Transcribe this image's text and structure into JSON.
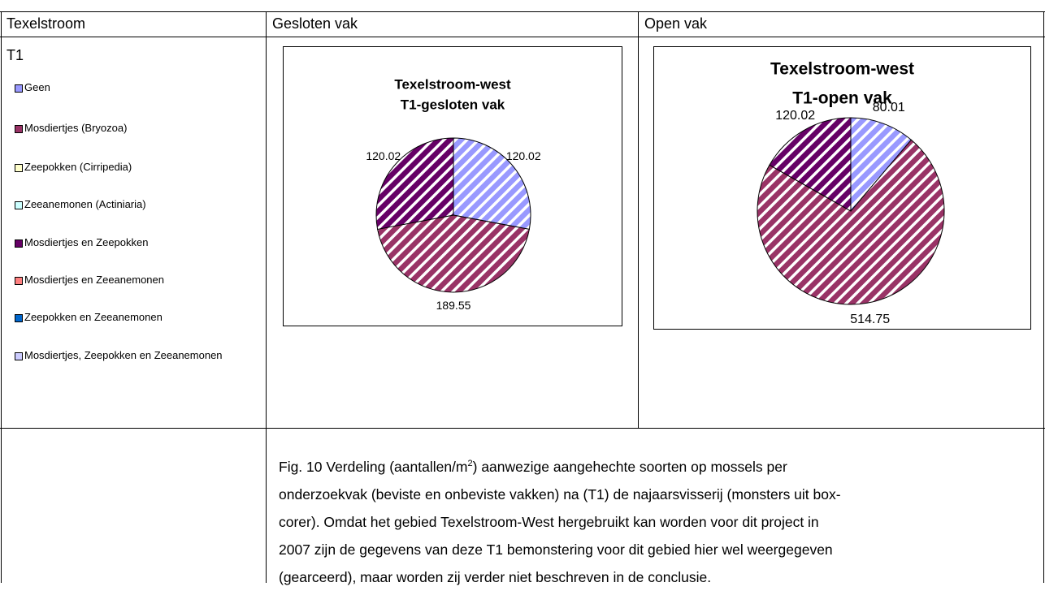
{
  "table": {
    "header": [
      "Texelstroom",
      "Gesloten vak",
      "Open vak"
    ],
    "row_label": "T1",
    "caption": {
      "pre": "Fig. 10 Verdeling (aantallen/m",
      "sup": "2",
      "lines": [
        ") aanwezige aangehechte soorten op mossels per",
        "onderzoekvak (beviste en onbeviste vakken) na (T1) de najaarsvisserij (monsters uit box-",
        "corer). Omdat het gebied Texelstroom-West hergebruikt kan worden voor dit project in",
        "2007 zijn de gegevens van deze T1 bemonstering voor dit gebied hier wel weergegeven",
        "(gearceerd), maar worden zij verder niet beschreven in de conclusie."
      ]
    }
  },
  "legend": [
    {
      "name": "Geen",
      "color": "#9999ff"
    },
    {
      "name": "Mosdiertjes (Bryozoa)",
      "color": "#993366"
    },
    {
      "name": "Zeepokken (Cirripedia)",
      "color": "#ffffcc"
    },
    {
      "name": "Zeeanemonen (Actiniaria)",
      "color": "#ccffff"
    },
    {
      "name": "Mosdiertjes en Zeepokken",
      "color": "#660066"
    },
    {
      "name": "Mosdiertjes en Zeeanemonen",
      "color": "#ff8080"
    },
    {
      "name": "Zeepokken en Zeeanemonen",
      "color": "#0066cc"
    },
    {
      "name": "Mosdiertjes, Zeepokken en Zeeanemonen",
      "color": "#ccccff"
    }
  ],
  "chart_data": [
    {
      "type": "pie",
      "title": [
        "Texelstroom-west",
        "T1-gesloten vak"
      ],
      "values": [
        120.02,
        189.55,
        120.02
      ],
      "colors": [
        "#9999ff",
        "#993366",
        "#660066"
      ],
      "hatched": true
    },
    {
      "type": "pie",
      "title": [
        "Texelstroom-west",
        "T1-open vak"
      ],
      "values": [
        80.01,
        514.75,
        120.02
      ],
      "colors": [
        "#9999ff",
        "#993366",
        "#660066"
      ],
      "hatched": true
    }
  ]
}
